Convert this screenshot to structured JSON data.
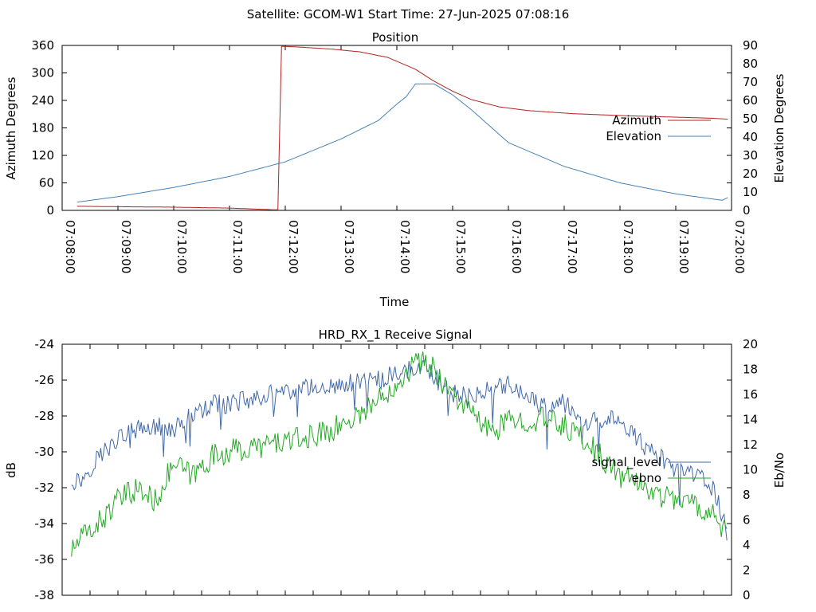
{
  "suptitle": "Satellite: GCOM-W1    Start Time: 27-Jun-2025 07:08:16",
  "chart_data": [
    {
      "type": "line",
      "title": "Position",
      "xlabel": "Time",
      "ylabel": "Azimuth Degrees",
      "y2label": "Elevation Degrees",
      "xlim": [
        0,
        720
      ],
      "ylim": [
        0,
        360
      ],
      "y2lim": [
        0,
        90
      ],
      "x_tick_values": [
        0,
        60,
        120,
        180,
        240,
        300,
        360,
        420,
        480,
        540,
        600,
        660,
        720
      ],
      "x_tick_labels": [
        "07:08:00",
        "07:09:00",
        "07:10:00",
        "07:11:00",
        "07:12:00",
        "07:13:00",
        "07:14:00",
        "07:15:00",
        "07:16:00",
        "07:17:00",
        "07:18:00",
        "07:19:00",
        "07:20:00"
      ],
      "y_ticks": [
        "0",
        "60",
        "120",
        "180",
        "240",
        "300",
        "360"
      ],
      "y2_ticks": [
        "0",
        "10",
        "20",
        "30",
        "40",
        "50",
        "60",
        "70",
        "80",
        "90"
      ],
      "legend_position": "right",
      "series": [
        {
          "name": "Azimuth",
          "axis": "left",
          "color": "#b22222",
          "x": [
            16,
            60,
            120,
            180,
            232,
            236,
            250,
            290,
            320,
            350,
            380,
            400,
            420,
            440,
            470,
            500,
            550,
            600,
            650,
            700,
            716
          ],
          "y": [
            9,
            8,
            7,
            5,
            1,
            358,
            357,
            352,
            346,
            334,
            308,
            282,
            260,
            242,
            226,
            218,
            211,
            207,
            204,
            201,
            199
          ]
        },
        {
          "name": "Elevation",
          "axis": "right",
          "color": "#4682b4",
          "x": [
            16,
            60,
            120,
            180,
            240,
            300,
            340,
            360,
            370,
            380,
            400,
            420,
            440,
            480,
            540,
            600,
            660,
            710,
            716
          ],
          "y": [
            4.5,
            7.5,
            12.5,
            18.5,
            26.5,
            39,
            49,
            58,
            62,
            69,
            69,
            63,
            55,
            37,
            24,
            15,
            9,
            5.5,
            7
          ]
        }
      ]
    },
    {
      "type": "line",
      "title": "HRD_RX_1 Receive Signal",
      "ylabel": "dB",
      "y2label": "Eb/No",
      "xlim": [
        0,
        720
      ],
      "ylim": [
        -38,
        -24
      ],
      "y2lim": [
        0,
        20
      ],
      "y_ticks": [
        "-24",
        "-26",
        "-28",
        "-30",
        "-32",
        "-34",
        "-36",
        "-38"
      ],
      "y2_ticks": [
        "0",
        "2",
        "4",
        "6",
        "8",
        "10",
        "12",
        "14",
        "16",
        "18",
        "20"
      ],
      "legend_position": "right",
      "series": [
        {
          "name": "signal_level",
          "axis": "left",
          "color": "#4169a8",
          "x": [
            10,
            20,
            40,
            60,
            80,
            100,
            120,
            140,
            160,
            180,
            200,
            220,
            240,
            260,
            280,
            300,
            320,
            340,
            360,
            370,
            380,
            390,
            395,
            400,
            410,
            420,
            440,
            460,
            480,
            500,
            520,
            540,
            560,
            580,
            600,
            620,
            640,
            660,
            680,
            700,
            710,
            716
          ],
          "y": [
            -31.6,
            -31.6,
            -30.2,
            -29.2,
            -28.8,
            -28.6,
            -28.7,
            -28.0,
            -27.4,
            -27.3,
            -27.1,
            -26.8,
            -26.8,
            -26.5,
            -26.3,
            -26.3,
            -26.1,
            -26.0,
            -25.6,
            -25.5,
            -25.3,
            -25.2,
            -25.5,
            -25.7,
            -26.5,
            -26.7,
            -27.0,
            -26.3,
            -26.2,
            -27.0,
            -27.5,
            -27.3,
            -28.4,
            -28.3,
            -28.0,
            -29.4,
            -30.2,
            -31.1,
            -31.3,
            -32.0,
            -33.5,
            -34.9
          ]
        },
        {
          "name": "ebno",
          "axis": "right",
          "color": "#22aa22",
          "x": [
            10,
            20,
            40,
            60,
            80,
            100,
            120,
            140,
            160,
            180,
            200,
            220,
            240,
            260,
            280,
            300,
            320,
            340,
            360,
            370,
            380,
            390,
            400,
            420,
            440,
            460,
            480,
            500,
            520,
            540,
            560,
            580,
            600,
            620,
            640,
            660,
            680,
            700,
            710,
            716
          ],
          "y": [
            3.5,
            4.5,
            5.8,
            7.5,
            8.5,
            7.5,
            10.5,
            9.5,
            11.0,
            11.5,
            11.6,
            12.0,
            12.3,
            12.4,
            13.0,
            13.5,
            14.5,
            15.5,
            17.0,
            17.8,
            18.5,
            18.6,
            18.0,
            16.0,
            14.5,
            13.0,
            13.8,
            14.0,
            14.0,
            13.5,
            12.5,
            11.0,
            9.5,
            9.0,
            8.0,
            7.8,
            7.2,
            6.5,
            5.5,
            4.5
          ]
        }
      ]
    }
  ]
}
